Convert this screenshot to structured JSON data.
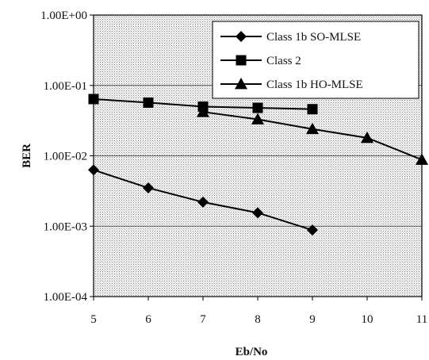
{
  "chart_data": {
    "type": "line",
    "xlabel": "Eb/No",
    "ylabel": "BER",
    "y_scale": "log",
    "ylim": [
      0.0001,
      1
    ],
    "xlim": [
      5,
      11
    ],
    "x_ticks": [
      5,
      6,
      7,
      8,
      9,
      10,
      11
    ],
    "y_ticks": [
      {
        "value": 1,
        "label": "1.00E+00"
      },
      {
        "value": 0.1,
        "label": "1.00E-01"
      },
      {
        "value": 0.01,
        "label": "1.00E-02"
      },
      {
        "value": 0.001,
        "label": "1.00E-03"
      },
      {
        "value": 0.0001,
        "label": "1.00E-04"
      }
    ],
    "grid": true,
    "background": "dotted gray",
    "legend_position": "top-right",
    "series": [
      {
        "name": "Class 1b SO-MLSE",
        "marker": "diamond",
        "color": "#000000",
        "points": [
          [
            5,
            0.0063
          ],
          [
            6,
            0.0035
          ],
          [
            7,
            0.0022
          ],
          [
            8,
            0.00155
          ],
          [
            9,
            0.00088
          ]
        ]
      },
      {
        "name": "Class 2",
        "marker": "square",
        "color": "#000000",
        "points": [
          [
            5,
            0.064
          ],
          [
            6,
            0.057
          ],
          [
            7,
            0.05
          ],
          [
            8,
            0.048
          ],
          [
            9,
            0.046
          ]
        ]
      },
      {
        "name": "Class 1b HO-MLSE",
        "marker": "triangle",
        "color": "#000000",
        "points": [
          [
            7,
            0.042
          ],
          [
            8,
            0.033
          ],
          [
            9,
            0.024
          ],
          [
            10,
            0.018
          ],
          [
            11,
            0.0088
          ]
        ]
      }
    ]
  }
}
